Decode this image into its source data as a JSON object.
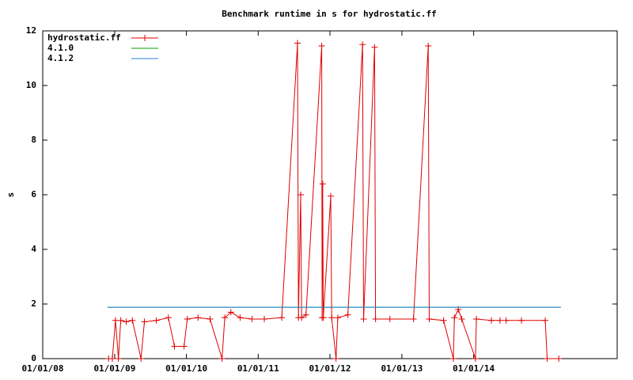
{
  "chart_data": {
    "type": "line",
    "title": "Benchmark runtime in s for hydrostatic.ff",
    "y_label": "s",
    "legend": "top-left",
    "xlim": [
      "01/01/08",
      "01/01/16"
    ],
    "xticks": [
      "01/01/08",
      "01/01/09",
      "01/01/10",
      "01/01/11",
      "01/01/12",
      "01/01/13",
      "01/01/14"
    ],
    "ylim": [
      0,
      12
    ],
    "yticks": [
      0,
      2,
      4,
      6,
      8,
      10,
      12
    ],
    "series": [
      {
        "name": "hydrostatic.ff",
        "color": "#e00000",
        "markers": true,
        "x": [
          "12/01/08",
          "12/20/08",
          "01/05/09",
          "01/20/09",
          "02/01/09",
          "03/01/09",
          "04/01/09",
          "05/15/09",
          "06/01/09",
          "08/01/09",
          "10/01/09",
          "11/01/09",
          "12/20/09",
          "01/05/10",
          "03/01/10",
          "05/01/10",
          "07/01/10",
          "07/15/10",
          "08/15/10",
          "10/01/10",
          "12/01/10",
          "02/01/11",
          "05/01/11",
          "07/20/11",
          "07/25/11",
          "08/05/11",
          "08/10/11",
          "09/01/11",
          "11/20/11",
          "11/22/11",
          "11/25/11",
          "11/28/11",
          "01/05/12",
          "01/10/12",
          "02/01/12",
          "02/10/12",
          "04/01/12",
          "06/15/12",
          "06/20/12",
          "08/15/12",
          "08/20/12",
          "11/01/12",
          "03/01/13",
          "05/15/13",
          "05/20/13",
          "08/01/13",
          "09/20/13",
          "09/25/13",
          "10/15/13",
          "11/01/13",
          "01/10/14",
          "01/15/14",
          "04/01/14",
          "05/15/14",
          "06/01/14",
          "06/15/14",
          "09/01/14",
          "12/31/14",
          "01/10/15",
          "03/10/15"
        ],
        "values": [
          0,
          0,
          1.4,
          0,
          1.4,
          1.35,
          1.4,
          0,
          1.35,
          1.4,
          1.5,
          0.45,
          0.45,
          1.45,
          1.5,
          1.45,
          0,
          1.5,
          1.7,
          1.5,
          1.45,
          1.45,
          1.5,
          11.55,
          1.5,
          6.0,
          1.5,
          1.6,
          11.45,
          1.5,
          6.4,
          1.5,
          5.95,
          1.5,
          0,
          1.5,
          1.6,
          11.5,
          1.45,
          11.4,
          1.45,
          1.45,
          1.45,
          11.45,
          1.45,
          1.4,
          0,
          1.5,
          1.8,
          1.45,
          0,
          1.45,
          1.4,
          1.4,
          null,
          1.4,
          1.4,
          1.4,
          0,
          0
        ]
      },
      {
        "name": "4.1.0",
        "color": "#00a000",
        "x": [
          "11/25/08",
          "03/20/15"
        ],
        "values": [
          1.88,
          1.88
        ]
      },
      {
        "name": "4.1.2",
        "color": "#2080e0",
        "x": [
          "11/25/08",
          "03/20/15"
        ],
        "values": [
          1.88,
          1.88
        ]
      }
    ]
  }
}
